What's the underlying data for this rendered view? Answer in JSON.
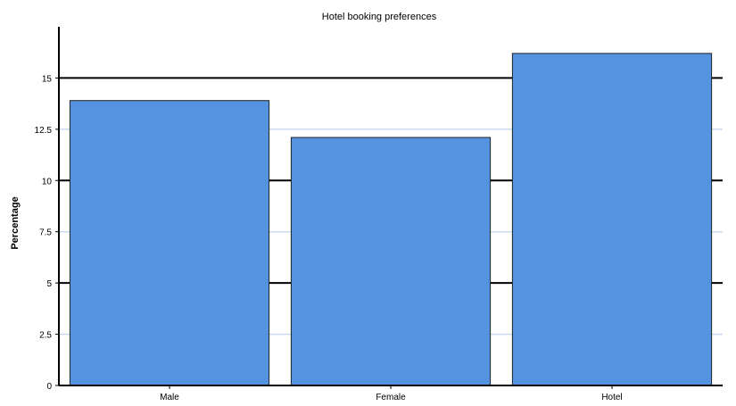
{
  "chart_data": {
    "type": "bar",
    "title": "Hotel booking preferences",
    "ylabel": "Percentage",
    "xlabel": "",
    "categories": [
      "Male",
      "Female",
      "Hotel"
    ],
    "values": [
      13.9,
      12.1,
      16.2
    ],
    "ylim": [
      0,
      17.5
    ],
    "yticks": [
      0,
      2.5,
      5,
      7.5,
      10,
      12.5,
      15
    ],
    "ytick_labels": [
      "0",
      "2.5",
      "5",
      "7.5",
      "10",
      "12.5",
      "15"
    ],
    "bar_color": "#5593e0",
    "bar_edge_color": "#222222",
    "grid": true,
    "grid_colors": {
      "major": "#000000",
      "minor": "#c9daf0"
    },
    "legend": "none"
  }
}
